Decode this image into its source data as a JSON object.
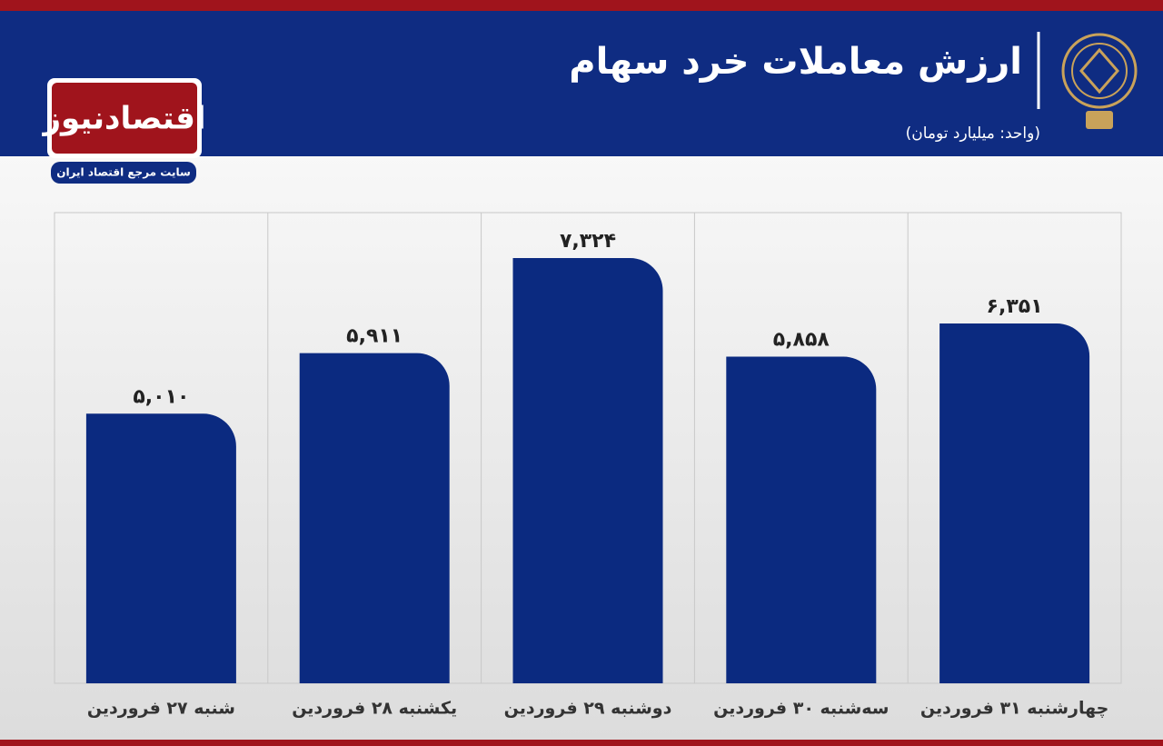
{
  "brand": {
    "name": "اقتصادنیوز",
    "tagline": "سایت مرجع اقتصاد ایران"
  },
  "chart_data": {
    "type": "bar",
    "title": "ارزش معاملات خرد سهام",
    "subtitle": "(واحد: میلیارد تومان)",
    "categories": [
      "شنبه ۲۷ فروردین",
      "یکشنبه ۲۸ فروردین",
      "دوشنبه ۲۹ فروردین",
      "سه‌شنبه ۳۰ فروردین",
      "چهارشنبه ۳۱ فروردین"
    ],
    "values": [
      5010,
      5911,
      7324,
      5858,
      6351
    ],
    "value_labels": [
      "۵,۰۱۰",
      "۵,۹۱۱",
      "۷,۳۲۴",
      "۵,۸۵۸",
      "۶,۳۵۱"
    ],
    "color": "#0b2a80",
    "ylim": [
      1000,
      8000
    ]
  }
}
